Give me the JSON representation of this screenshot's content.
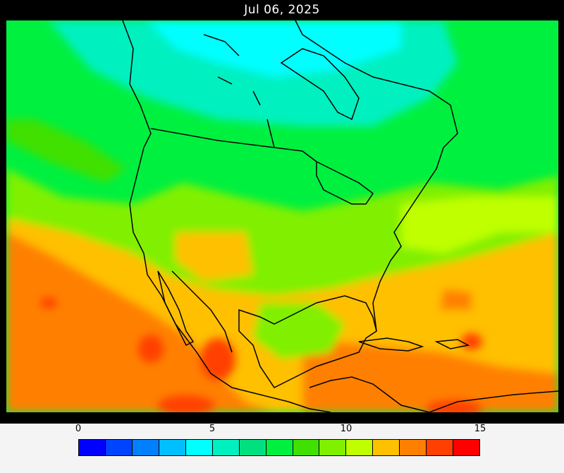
{
  "title": "Jul 06, 2025",
  "colorbar": {
    "ticks": [
      "0",
      "5",
      "10",
      "15"
    ],
    "min": 0,
    "max": 15,
    "colors": [
      "#0000ff",
      "#0044ff",
      "#0080ff",
      "#00bfff",
      "#00ffff",
      "#00f0c0",
      "#00e080",
      "#00f040",
      "#40e000",
      "#80f000",
      "#c0ff00",
      "#ffc000",
      "#ff8000",
      "#ff4000",
      "#ff0000"
    ]
  },
  "field": {
    "ocean_west": "#ff8000",
    "tropics": "#ffc000",
    "midlat": "#80f000",
    "canada": "#00f040",
    "arctic": "#00f0c0",
    "pole": "#00ffff",
    "hot": "#ff4000",
    "coast": "#000000"
  }
}
